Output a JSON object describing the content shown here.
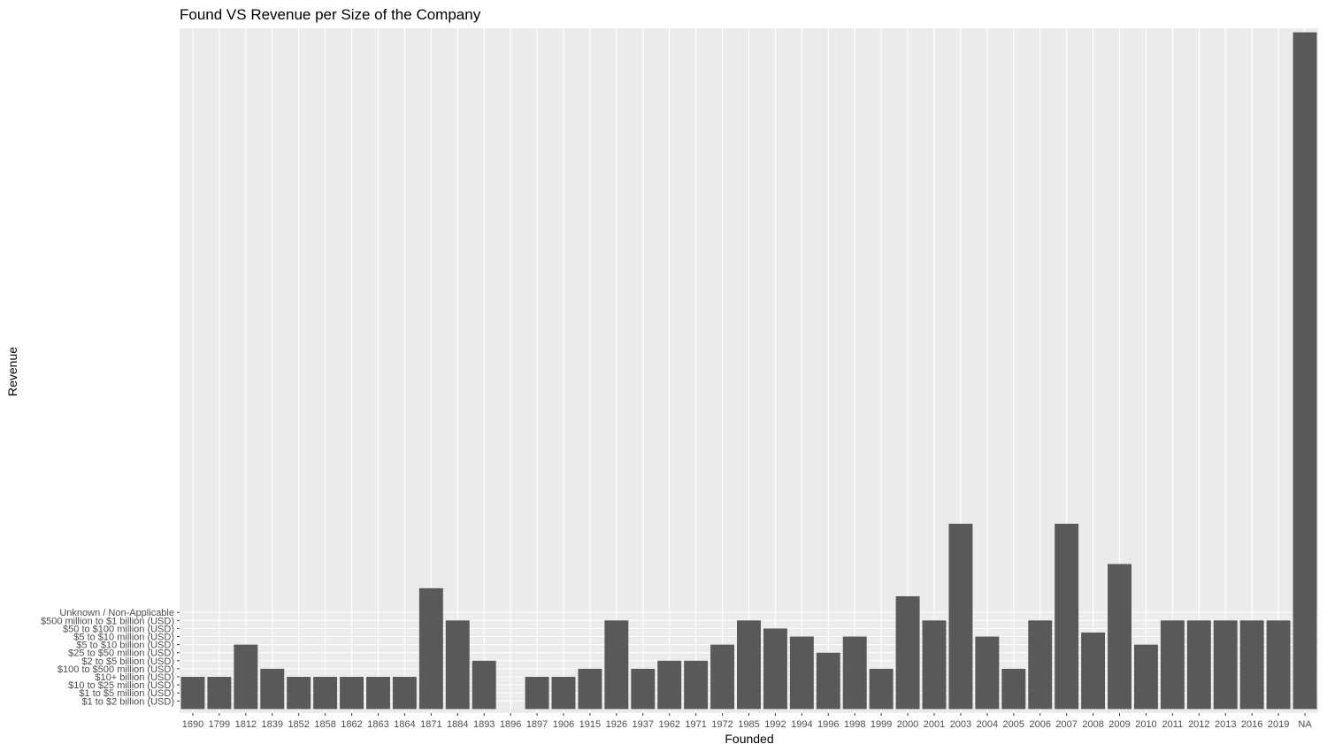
{
  "chart_data": {
    "type": "bar",
    "title": "Found VS Revenue per Size of the Company",
    "xlabel": "Founded",
    "ylabel": "Revenue",
    "categories": [
      "1690",
      "1799",
      "1812",
      "1839",
      "1852",
      "1858",
      "1862",
      "1863",
      "1864",
      "1871",
      "1884",
      "1893",
      "1896",
      "1897",
      "1906",
      "1915",
      "1926",
      "1937",
      "1962",
      "1971",
      "1972",
      "1985",
      "1992",
      "1994",
      "1996",
      "1998",
      "1999",
      "2000",
      "2001",
      "2003",
      "2004",
      "2005",
      "2006",
      "2007",
      "2008",
      "2009",
      "2010",
      "2011",
      "2012",
      "2013",
      "2016",
      "2019",
      "NA"
    ],
    "y_levels": [
      "$1 to $2 billion (USD)",
      "$1 to $5 million (USD)",
      "$10 to $25 million (USD)",
      "$10+ billion (USD)",
      "$100 to $500 million (USD)",
      "$2 to $5 billion (USD)",
      "$25 to $50 million (USD)",
      "$5 to $10 billion (USD)",
      "$5 to $10 million (USD)",
      "$50 to $100 million (USD)",
      "$500 million to $1 billion (USD)",
      "Unknown / Non-Applicable"
    ],
    "values": [
      4,
      4,
      8,
      5,
      4,
      4,
      4,
      4,
      4,
      15,
      11,
      6,
      0,
      4,
      4,
      5,
      11,
      5,
      6,
      6,
      8,
      11,
      10,
      9,
      7,
      9,
      5,
      14,
      11,
      23,
      9,
      5,
      11,
      23,
      9.5,
      18,
      8,
      11,
      11,
      11,
      11,
      11,
      84
    ],
    "ylim": [
      -0.5,
      84.5
    ],
    "colors": {
      "panel": "#EBEBEB",
      "grid_major": "#FFFFFF",
      "grid_minor": "#F5F5F5",
      "bar": "#595959",
      "tick": "#333333",
      "tick_text": "#4D4D4D"
    }
  }
}
